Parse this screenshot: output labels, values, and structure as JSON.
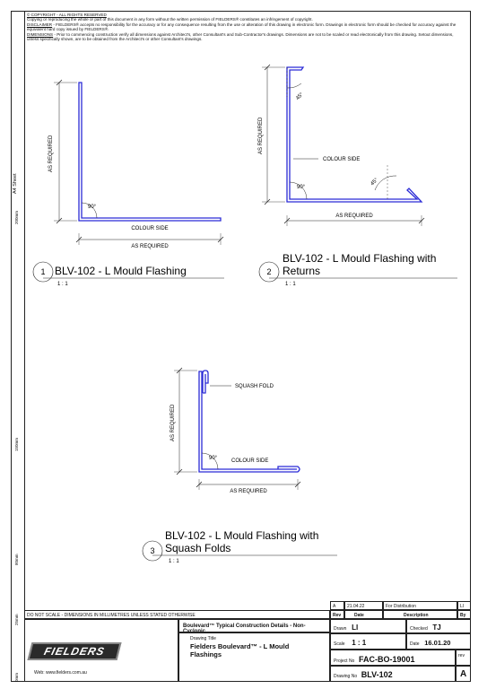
{
  "notes": {
    "copyright": "© COPYRIGHT - ALL RIGHTS RESERVED",
    "copy_text": "Copying or reproducing the whole or part of this document in any form without the written permission of FIELDERS® constitutes an infringement of copyright.",
    "disclaimer_label": "DISCLAIMER",
    "disclaimer_text": " - FIELDERS® accepts no responsibility for the accuracy or for any consequence resulting from the use or alteration of this drawing in electronic form. Drawings in electronic form should be checked for accuracy against the equivalent hard copy issued by FIELDERS®.",
    "dimensions_label": "DIMENSIONS",
    "dimensions_text": " - Prior to commencing construction verify all dimensions against Architect's, other Consultant's and Sub-Contractor's drawings. Dimensions are not to be scaled or read electronically from this drawing. Setout dimensions, unless specifically shown, are to be obtained from the Architect's or other Consultant's drawings."
  },
  "margin": {
    "sheet": "A4 Sheet",
    "mark_200": "200mm",
    "mark_150": "150mm",
    "mark_80": "80mm",
    "mark_25": "25mm",
    "mark_0": "0mm"
  },
  "detail1": {
    "number": "1",
    "title": "BLV-102 - L Mould Flashing",
    "scale": "1 : 1",
    "as_required_v": "AS REQUIRED",
    "as_required_h": "AS REQUIRED",
    "colour_side": "COLOUR SIDE",
    "angle": "90°"
  },
  "detail2": {
    "number": "2",
    "title_line1": "BLV-102 - L Mould Flashing with",
    "title_line2": "Returns",
    "scale": "1 : 1",
    "as_required_v": "AS REQUIRED",
    "as_required_h": "AS REQUIRED",
    "colour_side": "COLOUR SIDE",
    "angle_top": "45°",
    "angle_corner": "90°",
    "angle_right": "45°"
  },
  "detail3": {
    "number": "3",
    "title_line1": "BLV-102 - L Mould Flashing with",
    "title_line2": "Squash Folds",
    "scale": "1 : 1",
    "as_required_v": "AS REQUIRED",
    "as_required_h": "AS REQUIRED",
    "colour_side": "COLOUR SIDE",
    "squash_fold": "SQUASH FOLD",
    "angle": "90°"
  },
  "title_block": {
    "rev_row": {
      "rev": "A",
      "date": "21.04.22",
      "description": "For Distribution",
      "by": "LI"
    },
    "rev_headers": {
      "rev": "Rev",
      "date": "Date",
      "description": "Description",
      "by": "By"
    },
    "scale_note": "DO NOT SCALE - DIMENSIONS IN MILLIMETRES UNLESS STATED OTHERWISE",
    "logo": "FIELDERS",
    "website": "Web: www.fielders.com.au",
    "series": "Boulevard™ Typical Construction Details - Non-Cyclonic",
    "drawing_title_label": "Drawing Title",
    "drawing_title": "Fielders Boulevard™ - L Mould Flashings",
    "drawn_label": "Drawn",
    "drawn": "LI",
    "checked_label": "Checked",
    "checked": "TJ",
    "scale_label": "Scale",
    "scale": "1 : 1",
    "date_label": "Date",
    "date": "16.01.20",
    "project_label": "Project No",
    "project": "FAC-BO-19001",
    "rev_label": "rev",
    "drawing_no_label": "Drawing No",
    "drawing_no": "BLV-102",
    "rev_value": "A"
  },
  "colors": {
    "flashing": "#2b2bd6",
    "line": "#222222"
  }
}
